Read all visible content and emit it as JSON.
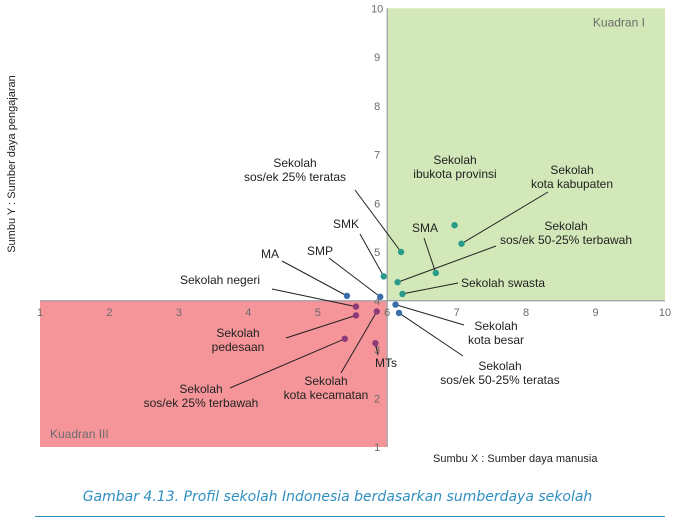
{
  "chart_data": {
    "type": "scatter",
    "caption": "Gambar 4.13. Profil sekolah Indonesia berdasarkan sumberdaya sekolah",
    "xlabel": "Sumbu X : Sumber daya manusia",
    "ylabel": "Sumbu Y : Sumber daya pengajaran",
    "xlim": [
      1,
      10
    ],
    "ylim": [
      1,
      10
    ],
    "x_ticks": [
      "1",
      "2",
      "3",
      "4",
      "5",
      "6",
      "7",
      "8",
      "9",
      "10"
    ],
    "y_ticks": [
      "1",
      "2",
      "3",
      "4",
      "5",
      "6",
      "7",
      "8",
      "9",
      "10"
    ],
    "origin": [
      6,
      4
    ],
    "quadrants": [
      {
        "label": "Kuadran I",
        "x_range": [
          6,
          10
        ],
        "y_range": [
          4,
          10
        ],
        "color": "#d2e8b8"
      },
      {
        "label": "Kuadran III",
        "x_range": [
          1,
          6
        ],
        "y_range": [
          1,
          4
        ],
        "color": "#f5959a"
      }
    ],
    "points": [
      {
        "label": "Sekolah ibukota provinsi",
        "x": 6.97,
        "y": 5.55,
        "color": "#2a9a8a"
      },
      {
        "label": "Sekolah kota kabupaten",
        "x": 7.07,
        "y": 5.17,
        "color": "#2a9a8a"
      },
      {
        "label": "Sekolah sos/ek 25% teratas",
        "x": 6.2,
        "y": 5.0,
        "color": "#2a9a8a"
      },
      {
        "label": "SMA",
        "x": 6.7,
        "y": 4.57,
        "color": "#2a9a8a"
      },
      {
        "label": "SMK",
        "x": 5.95,
        "y": 4.5,
        "color": "#2a9a8a"
      },
      {
        "label": "Sekolah sos/ek 50-25% terbawah",
        "x": 6.15,
        "y": 4.38,
        "color": "#2a9a8a"
      },
      {
        "label": "Sekolah swasta",
        "x": 6.22,
        "y": 4.14,
        "color": "#2a9a8a"
      },
      {
        "label": "SMP",
        "x": 5.9,
        "y": 4.08,
        "color": "#3a6ea8"
      },
      {
        "label": "MA",
        "x": 5.42,
        "y": 4.1,
        "color": "#3a6ea8"
      },
      {
        "label": "Sekolah negeri",
        "x": 5.55,
        "y": 3.88,
        "color": "#8e3a78"
      },
      {
        "label": "Sekolah pedesaan",
        "x": 5.55,
        "y": 3.7,
        "color": "#8e3a78"
      },
      {
        "label": "Sekolah kota kecamatan",
        "x": 5.85,
        "y": 3.78,
        "color": "#8e3a78"
      },
      {
        "label": "Sekolah sos/ek 25% terbawah",
        "x": 5.39,
        "y": 3.22,
        "color": "#8e3a78"
      },
      {
        "label": "MTs",
        "x": 5.83,
        "y": 3.13,
        "color": "#8e3a78"
      },
      {
        "label": "Sekolah kota besar",
        "x": 6.12,
        "y": 3.92,
        "color": "#3a6ea8"
      },
      {
        "label": "Sekolah sos/ek 50-25% teratas",
        "x": 6.17,
        "y": 3.75,
        "color": "#3a6ea8"
      }
    ]
  }
}
